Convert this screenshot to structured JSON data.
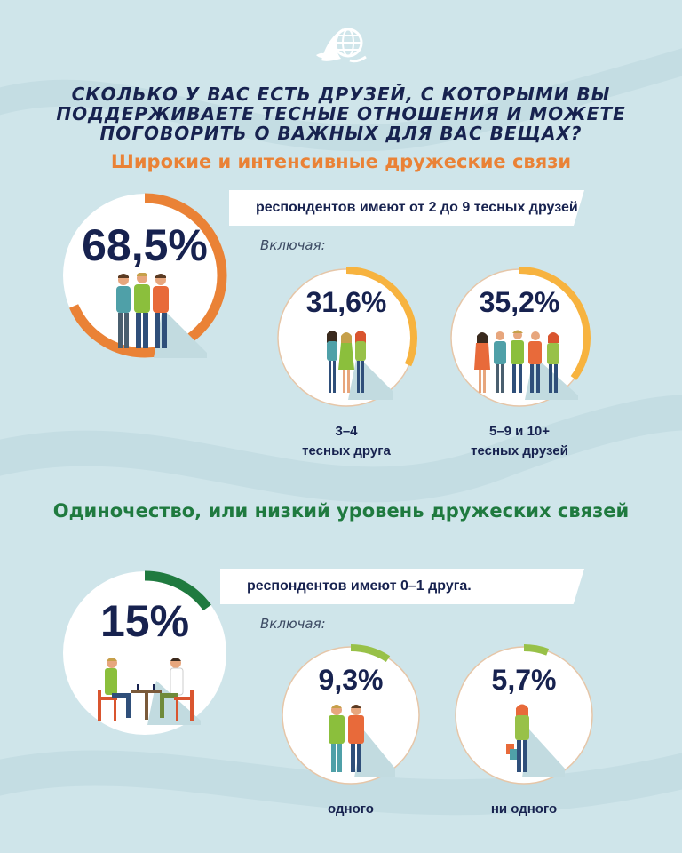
{
  "title_lines": [
    "СКОЛЬКО У ВАС ЕСТЬ ДРУЗЕЙ, С КОТОРЫМИ ВЫ",
    "ПОДДЕРЖИВАЕТЕ ТЕСНЫЕ ОТНОШЕНИЯ И МОЖЕТЕ",
    "ПОГОВОРИТЬ О ВАЖНЫХ ДЛЯ ВАС ВЕЩАХ?"
  ],
  "colors": {
    "background": "#cfe5ea",
    "title": "#17224f",
    "orange": "#ea8236",
    "yellow": "#f7b33f",
    "dark_green": "#1f7a3f",
    "light_green": "#98c148"
  },
  "section_wide": {
    "heading": "Широкие и интенсивные дружеские связи",
    "main_value": "68,5%",
    "main_fraction": 0.685,
    "ribbon": "респондентов имеют от 2 до 9 тесных друзей",
    "including": "Включая:",
    "items": [
      {
        "value": "31,6%",
        "fraction": 0.316,
        "caption_lines": [
          "3–4",
          "тесных друга"
        ]
      },
      {
        "value": "35,2%",
        "fraction": 0.352,
        "caption_lines": [
          "5–9 и 10+",
          "тесных друзей"
        ]
      }
    ]
  },
  "section_lonely": {
    "heading": "Одиночество, или низкий уровень дружеских связей",
    "main_value": "15%",
    "main_fraction": 0.15,
    "ribbon": "респондентов имеют 0–1 друга.",
    "including": "Включая:",
    "items": [
      {
        "value": "9,3%",
        "fraction": 0.093,
        "caption_lines": [
          "одного"
        ]
      },
      {
        "value": "5,7%",
        "fraction": 0.057,
        "caption_lines": [
          "ни одного"
        ]
      }
    ]
  },
  "icons": [
    "dove-globe-logo-icon",
    "group-of-friends-icon",
    "three-women-icon",
    "group-of-five-icon",
    "chess-players-icon",
    "two-friends-icon",
    "woman-with-shopping-bags-icon"
  ]
}
